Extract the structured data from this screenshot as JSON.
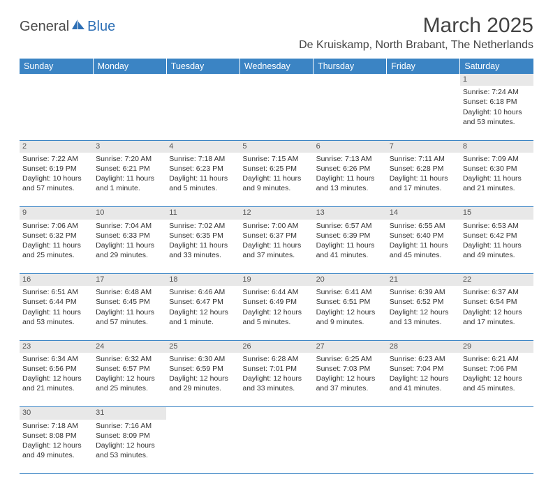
{
  "logo": {
    "part1": "General",
    "part2": "Blue"
  },
  "title": "March 2025",
  "location": "De Kruiskamp, North Brabant, The Netherlands",
  "header_bg": "#3b84c4",
  "weekdays": [
    "Sunday",
    "Monday",
    "Tuesday",
    "Wednesday",
    "Thursday",
    "Friday",
    "Saturday"
  ],
  "weeks": [
    {
      "nums": [
        "",
        "",
        "",
        "",
        "",
        "",
        "1"
      ],
      "cells": [
        null,
        null,
        null,
        null,
        null,
        null,
        {
          "sunrise": "Sunrise: 7:24 AM",
          "sunset": "Sunset: 6:18 PM",
          "day1": "Daylight: 10 hours",
          "day2": "and 53 minutes."
        }
      ]
    },
    {
      "nums": [
        "2",
        "3",
        "4",
        "5",
        "6",
        "7",
        "8"
      ],
      "cells": [
        {
          "sunrise": "Sunrise: 7:22 AM",
          "sunset": "Sunset: 6:19 PM",
          "day1": "Daylight: 10 hours",
          "day2": "and 57 minutes."
        },
        {
          "sunrise": "Sunrise: 7:20 AM",
          "sunset": "Sunset: 6:21 PM",
          "day1": "Daylight: 11 hours",
          "day2": "and 1 minute."
        },
        {
          "sunrise": "Sunrise: 7:18 AM",
          "sunset": "Sunset: 6:23 PM",
          "day1": "Daylight: 11 hours",
          "day2": "and 5 minutes."
        },
        {
          "sunrise": "Sunrise: 7:15 AM",
          "sunset": "Sunset: 6:25 PM",
          "day1": "Daylight: 11 hours",
          "day2": "and 9 minutes."
        },
        {
          "sunrise": "Sunrise: 7:13 AM",
          "sunset": "Sunset: 6:26 PM",
          "day1": "Daylight: 11 hours",
          "day2": "and 13 minutes."
        },
        {
          "sunrise": "Sunrise: 7:11 AM",
          "sunset": "Sunset: 6:28 PM",
          "day1": "Daylight: 11 hours",
          "day2": "and 17 minutes."
        },
        {
          "sunrise": "Sunrise: 7:09 AM",
          "sunset": "Sunset: 6:30 PM",
          "day1": "Daylight: 11 hours",
          "day2": "and 21 minutes."
        }
      ]
    },
    {
      "nums": [
        "9",
        "10",
        "11",
        "12",
        "13",
        "14",
        "15"
      ],
      "cells": [
        {
          "sunrise": "Sunrise: 7:06 AM",
          "sunset": "Sunset: 6:32 PM",
          "day1": "Daylight: 11 hours",
          "day2": "and 25 minutes."
        },
        {
          "sunrise": "Sunrise: 7:04 AM",
          "sunset": "Sunset: 6:33 PM",
          "day1": "Daylight: 11 hours",
          "day2": "and 29 minutes."
        },
        {
          "sunrise": "Sunrise: 7:02 AM",
          "sunset": "Sunset: 6:35 PM",
          "day1": "Daylight: 11 hours",
          "day2": "and 33 minutes."
        },
        {
          "sunrise": "Sunrise: 7:00 AM",
          "sunset": "Sunset: 6:37 PM",
          "day1": "Daylight: 11 hours",
          "day2": "and 37 minutes."
        },
        {
          "sunrise": "Sunrise: 6:57 AM",
          "sunset": "Sunset: 6:39 PM",
          "day1": "Daylight: 11 hours",
          "day2": "and 41 minutes."
        },
        {
          "sunrise": "Sunrise: 6:55 AM",
          "sunset": "Sunset: 6:40 PM",
          "day1": "Daylight: 11 hours",
          "day2": "and 45 minutes."
        },
        {
          "sunrise": "Sunrise: 6:53 AM",
          "sunset": "Sunset: 6:42 PM",
          "day1": "Daylight: 11 hours",
          "day2": "and 49 minutes."
        }
      ]
    },
    {
      "nums": [
        "16",
        "17",
        "18",
        "19",
        "20",
        "21",
        "22"
      ],
      "cells": [
        {
          "sunrise": "Sunrise: 6:51 AM",
          "sunset": "Sunset: 6:44 PM",
          "day1": "Daylight: 11 hours",
          "day2": "and 53 minutes."
        },
        {
          "sunrise": "Sunrise: 6:48 AM",
          "sunset": "Sunset: 6:45 PM",
          "day1": "Daylight: 11 hours",
          "day2": "and 57 minutes."
        },
        {
          "sunrise": "Sunrise: 6:46 AM",
          "sunset": "Sunset: 6:47 PM",
          "day1": "Daylight: 12 hours",
          "day2": "and 1 minute."
        },
        {
          "sunrise": "Sunrise: 6:44 AM",
          "sunset": "Sunset: 6:49 PM",
          "day1": "Daylight: 12 hours",
          "day2": "and 5 minutes."
        },
        {
          "sunrise": "Sunrise: 6:41 AM",
          "sunset": "Sunset: 6:51 PM",
          "day1": "Daylight: 12 hours",
          "day2": "and 9 minutes."
        },
        {
          "sunrise": "Sunrise: 6:39 AM",
          "sunset": "Sunset: 6:52 PM",
          "day1": "Daylight: 12 hours",
          "day2": "and 13 minutes."
        },
        {
          "sunrise": "Sunrise: 6:37 AM",
          "sunset": "Sunset: 6:54 PM",
          "day1": "Daylight: 12 hours",
          "day2": "and 17 minutes."
        }
      ]
    },
    {
      "nums": [
        "23",
        "24",
        "25",
        "26",
        "27",
        "28",
        "29"
      ],
      "cells": [
        {
          "sunrise": "Sunrise: 6:34 AM",
          "sunset": "Sunset: 6:56 PM",
          "day1": "Daylight: 12 hours",
          "day2": "and 21 minutes."
        },
        {
          "sunrise": "Sunrise: 6:32 AM",
          "sunset": "Sunset: 6:57 PM",
          "day1": "Daylight: 12 hours",
          "day2": "and 25 minutes."
        },
        {
          "sunrise": "Sunrise: 6:30 AM",
          "sunset": "Sunset: 6:59 PM",
          "day1": "Daylight: 12 hours",
          "day2": "and 29 minutes."
        },
        {
          "sunrise": "Sunrise: 6:28 AM",
          "sunset": "Sunset: 7:01 PM",
          "day1": "Daylight: 12 hours",
          "day2": "and 33 minutes."
        },
        {
          "sunrise": "Sunrise: 6:25 AM",
          "sunset": "Sunset: 7:03 PM",
          "day1": "Daylight: 12 hours",
          "day2": "and 37 minutes."
        },
        {
          "sunrise": "Sunrise: 6:23 AM",
          "sunset": "Sunset: 7:04 PM",
          "day1": "Daylight: 12 hours",
          "day2": "and 41 minutes."
        },
        {
          "sunrise": "Sunrise: 6:21 AM",
          "sunset": "Sunset: 7:06 PM",
          "day1": "Daylight: 12 hours",
          "day2": "and 45 minutes."
        }
      ]
    },
    {
      "nums": [
        "30",
        "31",
        "",
        "",
        "",
        "",
        ""
      ],
      "cells": [
        {
          "sunrise": "Sunrise: 7:18 AM",
          "sunset": "Sunset: 8:08 PM",
          "day1": "Daylight: 12 hours",
          "day2": "and 49 minutes."
        },
        {
          "sunrise": "Sunrise: 7:16 AM",
          "sunset": "Sunset: 8:09 PM",
          "day1": "Daylight: 12 hours",
          "day2": "and 53 minutes."
        },
        null,
        null,
        null,
        null,
        null
      ]
    }
  ]
}
